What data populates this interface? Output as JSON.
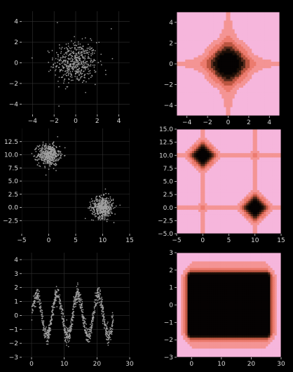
{
  "figure": {
    "background": "#000000",
    "tick_color": "#d9d9d9",
    "grid_color": "#333333"
  },
  "chart_data": [
    {
      "type": "scatter",
      "grid": true,
      "xlim": [
        -5,
        5
      ],
      "ylim": [
        -5,
        5
      ],
      "xticks": [
        -4,
        -2,
        0,
        2,
        4
      ],
      "yticks": [
        -4,
        -2,
        0,
        2,
        4
      ],
      "tick_labels_x": [
        "−4",
        "−2",
        "0",
        "2",
        "4"
      ],
      "tick_labels_y": [
        "−4",
        "−2",
        "0",
        "2",
        "4"
      ],
      "point_color": "#a0a0a0",
      "clusters": [
        {
          "center": [
            0,
            0
          ],
          "std": 1.0,
          "count": 500
        }
      ],
      "outliers": [
        [
          -1.7,
          3.9
        ],
        [
          3.3,
          3.3
        ],
        [
          3.4,
          0.4
        ]
      ]
    },
    {
      "type": "heatmap",
      "xlim": [
        -5,
        5
      ],
      "ylim": [
        -5,
        5
      ],
      "xticks": [
        -4,
        -2,
        0,
        2,
        4
      ],
      "yticks": [
        -4,
        -2,
        0,
        2,
        4
      ],
      "tick_labels_x": [
        "−4",
        "−2",
        "0",
        "2",
        "4"
      ],
      "tick_labels_y": [
        "−4",
        "−2",
        "0",
        "2",
        "4"
      ],
      "colormap": [
        "#f6b6dc",
        "#f49494",
        "#ec7b6e",
        "#bb5540",
        "#5b2c1d",
        "#1c0e07",
        "#050202"
      ],
      "centers": [
        [
          0,
          0
        ]
      ],
      "peak_radius": 1.3
    },
    {
      "type": "scatter",
      "grid": true,
      "xlim": [
        -5,
        15
      ],
      "ylim": [
        -5,
        15
      ],
      "xticks": [
        -5,
        0,
        5,
        10,
        15
      ],
      "yticks": [
        -2.5,
        0.0,
        2.5,
        5.0,
        7.5,
        10.0,
        12.5
      ],
      "tick_labels_x": [
        "−5",
        "0",
        "5",
        "10",
        "15"
      ],
      "tick_labels_y": [
        "−2.5",
        "0.0",
        "2.5",
        "5.0",
        "7.5",
        "10.0",
        "12.5"
      ],
      "point_color": "#a0a0a0",
      "clusters": [
        {
          "center": [
            0,
            10
          ],
          "std": 1.0,
          "count": 500
        },
        {
          "center": [
            10,
            0
          ],
          "std": 1.0,
          "count": 500
        }
      ],
      "outliers": [
        [
          10.5,
          3.5
        ]
      ]
    },
    {
      "type": "heatmap",
      "xlim": [
        -5,
        15
      ],
      "ylim": [
        -5,
        15
      ],
      "xticks": [
        -5,
        0,
        5,
        10,
        15
      ],
      "yticks": [
        -5.0,
        -2.5,
        0.0,
        2.5,
        5.0,
        7.5,
        10.0,
        12.5,
        15.0
      ],
      "tick_labels_x": [
        "−5",
        "0",
        "5",
        "10",
        "15"
      ],
      "tick_labels_y": [
        "−5.0",
        "−2.5",
        "0.0",
        "2.5",
        "5.0",
        "7.5",
        "10.0",
        "12.5",
        "15.0"
      ],
      "colormap": [
        "#f6b6dc",
        "#f49494",
        "#ec7b6e",
        "#bb5540",
        "#5b2c1d",
        "#1c0e07",
        "#050202"
      ],
      "centers": [
        [
          0,
          10
        ],
        [
          10,
          0
        ]
      ],
      "peak_radius": 1.5
    },
    {
      "type": "scatter",
      "grid": true,
      "xlim": [
        -3,
        30
      ],
      "ylim": [
        -3,
        4.5
      ],
      "xticks": [
        0,
        10,
        20,
        30
      ],
      "yticks": [
        -3,
        -2,
        -1,
        0,
        1,
        2,
        3,
        4
      ],
      "tick_labels_x": [
        "0",
        "10",
        "20",
        "30"
      ],
      "tick_labels_y": [
        "−3",
        "−2",
        "−1",
        "0",
        "1",
        "2",
        "3",
        "4"
      ],
      "point_color": "#a0a0a0",
      "curve": {
        "function": "y = 1.5 sin(x)",
        "x_range": [
          0,
          25
        ],
        "noise": 0.3,
        "count": 1000
      }
    },
    {
      "type": "heatmap",
      "xlim": [
        -5,
        30
      ],
      "ylim": [
        -3,
        3
      ],
      "xticks": [
        0,
        10,
        20,
        30
      ],
      "yticks": [
        -3,
        -2,
        -1,
        0,
        1,
        2,
        3
      ],
      "tick_labels_x": [
        "0",
        "10",
        "20",
        "30"
      ],
      "tick_labels_y": [
        "−3",
        "−2",
        "−1",
        "0",
        "1",
        "2",
        "3"
      ],
      "colormap": [
        "#f6b6dc",
        "#f49494",
        "#ec7b6e",
        "#bb5540",
        "#5b2c1d",
        "#1c0e07",
        "#050202"
      ],
      "band": {
        "x_range": [
          0,
          25
        ],
        "y_range": [
          -1.5,
          1.5
        ]
      }
    }
  ]
}
